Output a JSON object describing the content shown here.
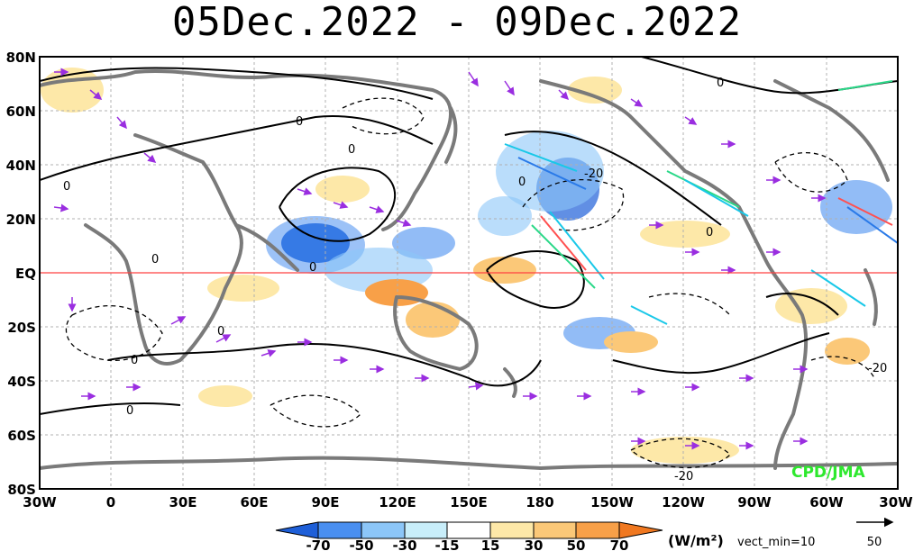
{
  "title": "05Dec.2022 - 09Dec.2022",
  "lat_labels": [
    "80N",
    "60N",
    "40N",
    "20N",
    "EQ",
    "20S",
    "40S",
    "60S",
    "80S"
  ],
  "lon_labels": [
    "30W",
    "0",
    "30E",
    "60E",
    "90E",
    "120E",
    "150E",
    "180",
    "150W",
    "120W",
    "90W",
    "60W",
    "30W"
  ],
  "contour_labels": [
    "0",
    "0",
    "0",
    "0",
    "0",
    "0",
    "0",
    "0",
    "-20",
    "0",
    "0",
    "-20",
    "-20",
    "0"
  ],
  "colorbar": {
    "ticks": [
      "-70",
      "-50",
      "-30",
      "-15",
      "15",
      "30",
      "50",
      "70"
    ],
    "colors": [
      "#1e5fd8",
      "#4a8ff0",
      "#8cc6f8",
      "#c8eefa",
      "#ffffff",
      "#fde8a8",
      "#fbc878",
      "#f8a048",
      "#f07820"
    ],
    "unit": "(W/m²)",
    "vect_note": "vect_min=10"
  },
  "reference_vector": "50",
  "credit": "CPD/JMA"
}
